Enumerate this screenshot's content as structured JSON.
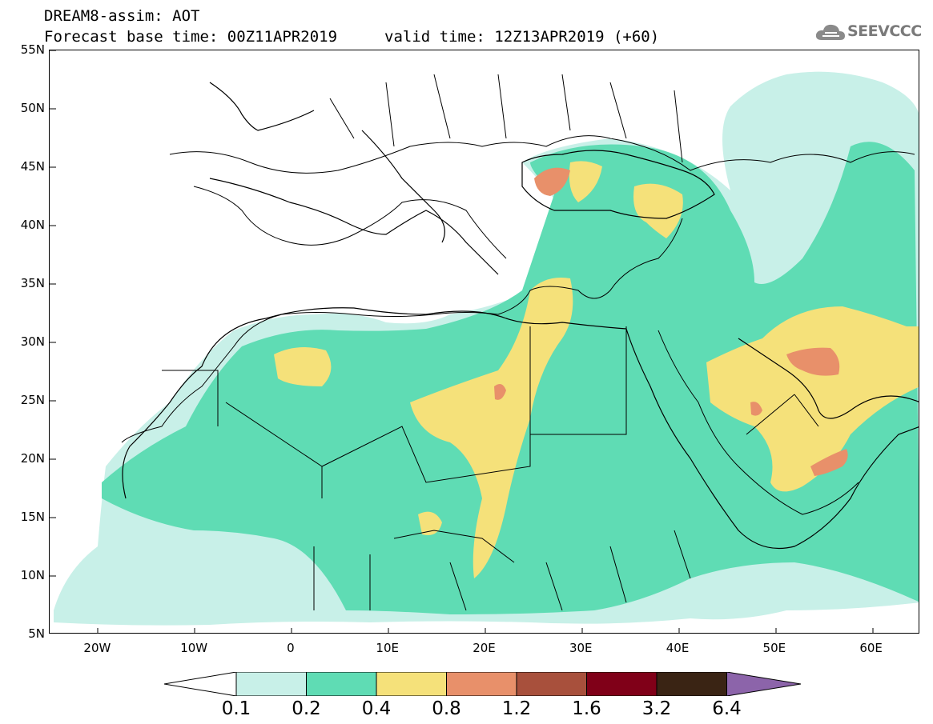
{
  "header": {
    "title": "DREAM8-assim: AOT",
    "base_time": "Forecast base time: 00Z11APR2019",
    "valid_time": "valid time: 12Z13APR2019 (+60)"
  },
  "logo": {
    "text": "SEEVCCC",
    "icon": "cloud-icon"
  },
  "map": {
    "y_axis": {
      "labels": [
        "55N",
        "50N",
        "45N",
        "40N",
        "35N",
        "30N",
        "25N",
        "20N",
        "15N",
        "10N",
        "5N"
      ],
      "values": [
        55,
        50,
        45,
        40,
        35,
        30,
        25,
        20,
        15,
        10,
        5
      ]
    },
    "x_axis": {
      "labels": [
        "20W",
        "10W",
        "0",
        "10E",
        "20E",
        "30E",
        "40E",
        "50E",
        "60E"
      ],
      "values": [
        -20,
        -10,
        0,
        10,
        20,
        30,
        40,
        50,
        60
      ]
    },
    "extent": {
      "lon": [
        -25,
        65
      ],
      "lat": [
        5,
        55
      ]
    }
  },
  "colorbar": {
    "labels": [
      "0.1",
      "0.2",
      "0.4",
      "0.8",
      "1.2",
      "1.6",
      "3.2",
      "6.4"
    ],
    "colors": [
      "#ffffff",
      "#c8f0e8",
      "#5fdcb4",
      "#f5e17a",
      "#e8906a",
      "#a8503c",
      "#800018",
      "#3a2414",
      "#8c64aa"
    ]
  }
}
